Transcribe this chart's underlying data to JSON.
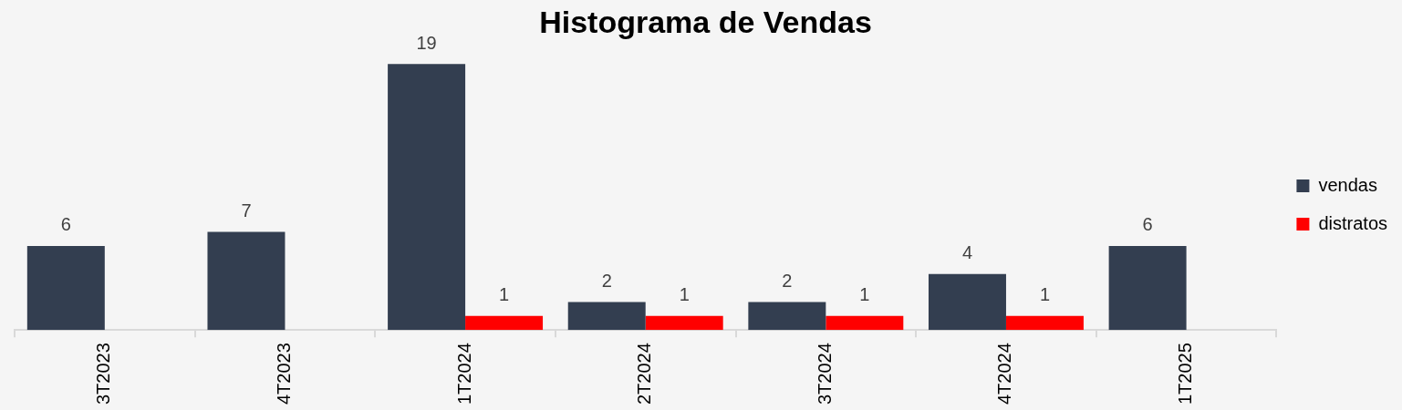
{
  "chart_data": {
    "type": "bar",
    "title": "Histograma de Vendas",
    "categories": [
      "3T2023",
      "4T2023",
      "1T2024",
      "2T2024",
      "3T2024",
      "4T2024",
      "1T2025"
    ],
    "series": [
      {
        "name": "vendas",
        "color": "#333e50",
        "values": [
          6,
          7,
          19,
          2,
          2,
          4,
          6
        ]
      },
      {
        "name": "distratos",
        "color": "#ff0000",
        "values": [
          null,
          null,
          1,
          1,
          1,
          1,
          null
        ]
      }
    ],
    "data_labels": true,
    "legend": "right"
  }
}
